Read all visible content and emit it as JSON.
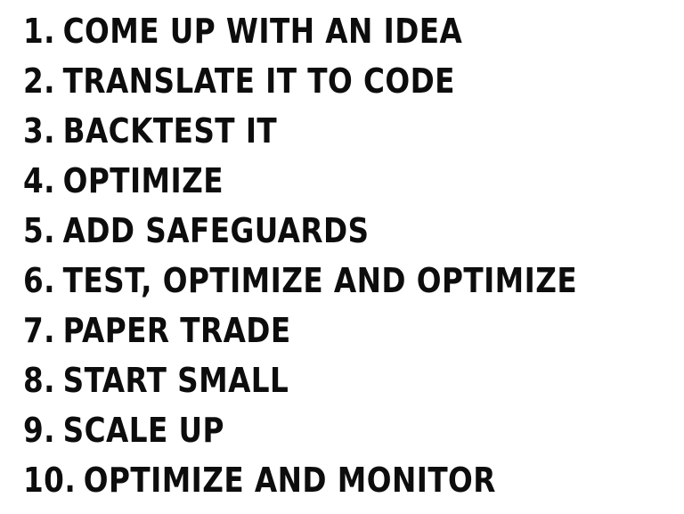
{
  "steps": [
    {
      "number": "1.",
      "text": "COME UP WITH AN IDEA"
    },
    {
      "number": "2.",
      "text": "TRANSLATE IT TO CODE"
    },
    {
      "number": "3.",
      "text": "BACKTEST IT"
    },
    {
      "number": "4.",
      "text": "OPTIMIZE"
    },
    {
      "number": "5.",
      "text": "ADD SAFEGUARDS"
    },
    {
      "number": "6.",
      "text": "TEST, OPTIMIZE AND OPTIMIZE"
    },
    {
      "number": "7.",
      "text": "PAPER TRADE"
    },
    {
      "number": "8.",
      "text": "START SMALL"
    },
    {
      "number": "9.",
      "text": "SCALE UP"
    },
    {
      "number": "10.",
      "text": "OPTIMIZE AND MONITOR"
    }
  ]
}
